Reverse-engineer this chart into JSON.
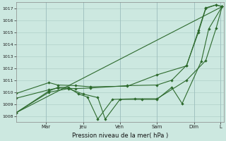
{
  "title": "Pression niveau de la mer( hPa )",
  "bg_color": "#cce8e0",
  "grid_color": "#b0d0c8",
  "line_color": "#2d6a2d",
  "ylim": [
    1007.5,
    1017.5
  ],
  "yticks": [
    1008,
    1009,
    1010,
    1011,
    1012,
    1013,
    1014,
    1015,
    1016,
    1017
  ],
  "xlim": [
    0,
    14.0
  ],
  "xtick_pos": [
    2.0,
    4.5,
    7.0,
    9.5,
    12.0,
    13.8
  ],
  "xtick_names": [
    "Mar",
    "Jeu",
    "Ven",
    "Sam",
    "Dim",
    "L"
  ],
  "vline_pos": [
    2.0,
    4.5,
    7.0,
    9.5,
    12.0,
    13.8
  ],
  "line1_x": [
    0.0,
    2.2,
    2.8,
    3.5,
    4.2,
    4.8,
    5.5,
    6.5,
    8.0,
    9.5,
    11.5,
    12.8,
    13.5,
    13.9
  ],
  "line1_y": [
    1008.3,
    1010.1,
    1010.4,
    1010.4,
    1009.85,
    1009.6,
    1007.75,
    1009.4,
    1009.45,
    1009.45,
    1011.0,
    1012.65,
    1015.35,
    1017.15
  ],
  "line2_x": [
    0.0,
    2.2,
    2.8,
    4.0,
    5.0,
    7.5,
    9.5,
    11.5,
    12.3,
    12.8,
    13.5,
    13.9
  ],
  "line2_y": [
    1009.9,
    1010.8,
    1010.6,
    1010.55,
    1010.45,
    1010.5,
    1011.45,
    1012.2,
    1015.15,
    1017.05,
    1017.3,
    1017.15
  ],
  "line3_x": [
    0.0,
    2.2,
    2.8,
    4.0,
    5.0,
    7.5,
    9.5,
    10.5,
    11.5,
    12.3,
    12.8,
    13.5,
    13.9
  ],
  "line3_y": [
    1009.5,
    1010.2,
    1010.35,
    1010.3,
    1010.35,
    1010.55,
    1010.6,
    1011.0,
    1012.25,
    1015.0,
    1017.0,
    1017.3,
    1017.15
  ],
  "line4_x": [
    0.0,
    2.2,
    3.5,
    4.5,
    5.5,
    6.0,
    7.0,
    8.5,
    9.5,
    10.5,
    11.2,
    12.5,
    13.0,
    13.9
  ],
  "line4_y": [
    1008.3,
    1010.0,
    1010.3,
    1009.85,
    1009.55,
    1007.75,
    1009.4,
    1009.4,
    1009.4,
    1010.4,
    1009.05,
    1012.6,
    1015.3,
    1017.15
  ]
}
